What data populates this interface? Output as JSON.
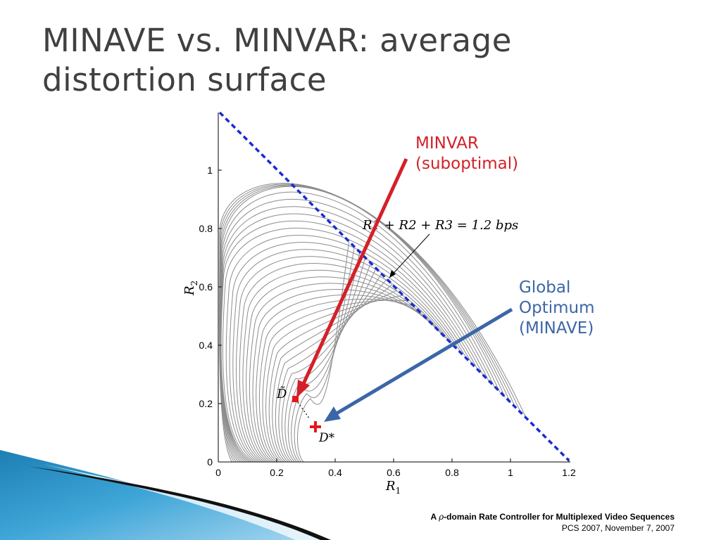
{
  "title": {
    "line1": "MINAVE vs. MINVAR: average",
    "line2": "distortion surface"
  },
  "plot": {
    "xlabel": "R1",
    "ylabel": "R2",
    "xticks": [
      "0",
      "0.2",
      "0.4",
      "0.6",
      "0.8",
      "1",
      "1.2"
    ],
    "yticks": [
      "0",
      "0.2",
      "0.4",
      "0.6",
      "0.8",
      "1"
    ],
    "constraint_label": "R1 + R2 + R3 = 1.2 bps",
    "dtilde_label": "D̃",
    "dstar_label": "D*",
    "colors": {
      "contour": "#8c8c8c",
      "constraint_line": "#1a2cd6",
      "marker": "#e8161c",
      "minvar_arrow": "#d42028",
      "global_arrow": "#3b66a8"
    }
  },
  "annotations": {
    "minvar": {
      "line1": "MINVAR",
      "line2": "(suboptimal)"
    },
    "global": {
      "line1": "Global",
      "line2": "Optimum",
      "line3": "(MINAVE)"
    }
  },
  "footer": {
    "line1_prefix": "A ",
    "rho": "ρ",
    "line1_suffix": "-domain Rate Controller for Multiplexed Video Sequences",
    "line2": "PCS 2007, November 7, 2007"
  }
}
